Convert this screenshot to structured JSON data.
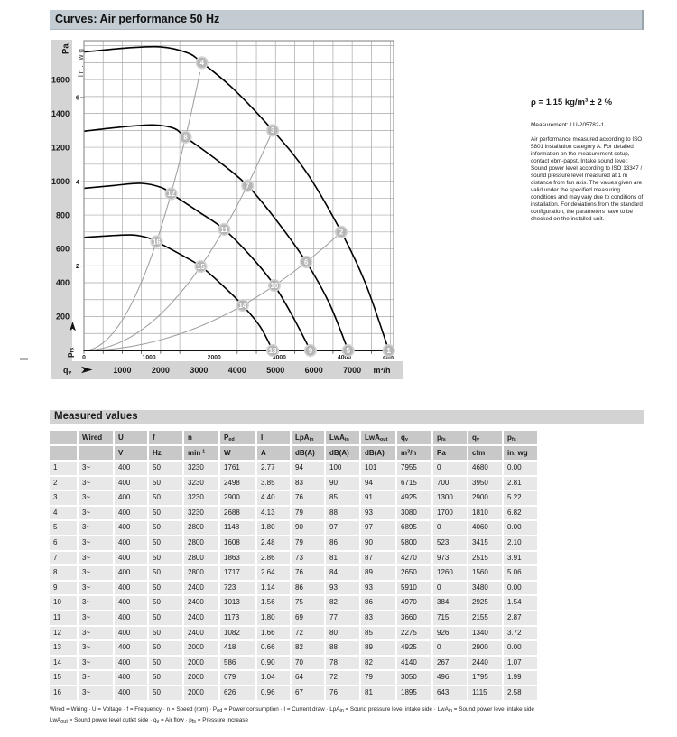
{
  "header_bar": {
    "title": "Curves: Air performance 50 Hz"
  },
  "side_note": {
    "density": "ρ = 1.15 kg/m³ ± 2 %",
    "measurement": "Measurement: LU-205782-1",
    "body": "Air performance measured according to ISO 5801 installation category A. For detailed information on the measurement setup, contact ebm-papst. Intake sound level: Sound power level according to ISO 13347 / sound pressure level measured at 1 m distance from fan axis. The values given are valid under the specified measuring conditions and may vary due to conditions of installation. For deviations from the standard configuration, the parameters have to be checked on the installed unit."
  },
  "chart_data": {
    "type": "line",
    "title": "Air performance 50 Hz",
    "x_axis": {
      "quantity": [
        [
          "t",
          "q"
        ],
        [
          "sub",
          "v"
        ]
      ],
      "unit_primary": "m³/h",
      "unit_secondary": "cfm",
      "range_m3h": [
        0,
        8080
      ],
      "grid_step_m3h": 500,
      "ticks_m3h": [
        1000,
        2000,
        3000,
        4000,
        5000,
        6000,
        7000
      ],
      "ticks_cfm": [
        0,
        1000,
        2000,
        3000,
        4000
      ],
      "m3h_per_cfm": 1.699
    },
    "y_axis": {
      "quantity": [
        [
          "t",
          "p"
        ],
        [
          "sub",
          "fs"
        ]
      ],
      "unit_primary": "Pa",
      "unit_secondary": "in. wg",
      "range_pa": [
        0,
        1830
      ],
      "grid_step_pa": 100,
      "ticks_pa": [
        200,
        400,
        600,
        800,
        1000,
        1200,
        1400,
        1600
      ],
      "ticks_inwg": [
        {
          "label": "2",
          "pa": 498
        },
        {
          "label": "4",
          "pa": 996
        },
        {
          "label": "6",
          "pa": 1494
        }
      ]
    },
    "fan_curves": [
      {
        "rpm": 3230,
        "points": [
          [
            0,
            1763
          ],
          [
            1100,
            1786
          ],
          [
            2000,
            1793
          ],
          [
            2700,
            1758
          ],
          [
            3080,
            1700
          ],
          [
            3900,
            1545
          ],
          [
            4925,
            1300
          ],
          [
            5800,
            1055
          ],
          [
            6715,
            700
          ],
          [
            7350,
            395
          ],
          [
            7955,
            0
          ]
        ]
      },
      {
        "rpm": 2800,
        "points": [
          [
            0,
            1295
          ],
          [
            1000,
            1320
          ],
          [
            1800,
            1332
          ],
          [
            2350,
            1312
          ],
          [
            2650,
            1260
          ],
          [
            3500,
            1120
          ],
          [
            4270,
            973
          ],
          [
            5000,
            775
          ],
          [
            5800,
            523
          ],
          [
            6400,
            280
          ],
          [
            6895,
            0
          ]
        ]
      },
      {
        "rpm": 2400,
        "points": [
          [
            0,
            958
          ],
          [
            800,
            975
          ],
          [
            1500,
            987
          ],
          [
            2030,
            962
          ],
          [
            2275,
            926
          ],
          [
            3000,
            818
          ],
          [
            3660,
            715
          ],
          [
            4400,
            545
          ],
          [
            4970,
            384
          ],
          [
            5450,
            200
          ],
          [
            5910,
            0
          ]
        ]
      },
      {
        "rpm": 2000,
        "points": [
          [
            0,
            668
          ],
          [
            700,
            678
          ],
          [
            1300,
            682
          ],
          [
            1720,
            662
          ],
          [
            1895,
            643
          ],
          [
            2500,
            570
          ],
          [
            3050,
            496
          ],
          [
            3600,
            388
          ],
          [
            4140,
            267
          ],
          [
            4600,
            140
          ],
          [
            4925,
            0
          ]
        ]
      }
    ],
    "system_curves": [
      {
        "apex_q": 3080,
        "apex_p": 1700
      },
      {
        "apex_q": 4925,
        "apex_p": 1300
      },
      {
        "apex_q": 6715,
        "apex_p": 700
      }
    ],
    "operating_points": [
      {
        "n": "1",
        "q_m3h": 7955,
        "p_pa": 0
      },
      {
        "n": "2",
        "q_m3h": 6715,
        "p_pa": 700
      },
      {
        "n": "3",
        "q_m3h": 4925,
        "p_pa": 1300
      },
      {
        "n": "4",
        "q_m3h": 3080,
        "p_pa": 1700
      },
      {
        "n": "5",
        "q_m3h": 6895,
        "p_pa": 0
      },
      {
        "n": "6",
        "q_m3h": 5800,
        "p_pa": 523
      },
      {
        "n": "7",
        "q_m3h": 4270,
        "p_pa": 973
      },
      {
        "n": "8",
        "q_m3h": 2650,
        "p_pa": 1260
      },
      {
        "n": "9",
        "q_m3h": 5910,
        "p_pa": 0
      },
      {
        "n": "10",
        "q_m3h": 4970,
        "p_pa": 384
      },
      {
        "n": "11",
        "q_m3h": 3660,
        "p_pa": 715
      },
      {
        "n": "12",
        "q_m3h": 2275,
        "p_pa": 926
      },
      {
        "n": "13",
        "q_m3h": 4925,
        "p_pa": 0
      },
      {
        "n": "14",
        "q_m3h": 4140,
        "p_pa": 267
      },
      {
        "n": "15",
        "q_m3h": 3050,
        "p_pa": 496
      },
      {
        "n": "16",
        "q_m3h": 1895,
        "p_pa": 643
      }
    ]
  },
  "table": {
    "section_title": "Measured values",
    "columns": [
      {
        "label": [],
        "unit": []
      },
      {
        "label": [
          [
            "t",
            "Wired"
          ]
        ],
        "unit": []
      },
      {
        "label": [
          [
            "t",
            "U"
          ]
        ],
        "unit": [
          [
            "t",
            "V"
          ]
        ]
      },
      {
        "label": [
          [
            "t",
            "f"
          ]
        ],
        "unit": [
          [
            "t",
            "Hz"
          ]
        ]
      },
      {
        "label": [
          [
            "t",
            "n"
          ]
        ],
        "unit": [
          [
            "t",
            "min"
          ],
          [
            "sup",
            "-1"
          ]
        ]
      },
      {
        "label": [
          [
            "t",
            "P"
          ],
          [
            "sub",
            "ed"
          ]
        ],
        "unit": [
          [
            "t",
            "W"
          ]
        ]
      },
      {
        "label": [
          [
            "t",
            "I"
          ]
        ],
        "unit": [
          [
            "t",
            "A"
          ]
        ]
      },
      {
        "label": [
          [
            "t",
            "LpA"
          ],
          [
            "sub",
            "in"
          ]
        ],
        "unit": [
          [
            "t",
            "dB(A)"
          ]
        ]
      },
      {
        "label": [
          [
            "t",
            "LwA"
          ],
          [
            "sub",
            "in"
          ]
        ],
        "unit": [
          [
            "t",
            "dB(A)"
          ]
        ]
      },
      {
        "label": [
          [
            "t",
            "LwA"
          ],
          [
            "sub",
            "out"
          ]
        ],
        "unit": [
          [
            "t",
            "dB(A)"
          ]
        ]
      },
      {
        "label": [
          [
            "t",
            "q"
          ],
          [
            "sub",
            "v"
          ]
        ],
        "unit": [
          [
            "t",
            "m"
          ],
          [
            "sup",
            "3"
          ],
          [
            "t",
            "/h"
          ]
        ]
      },
      {
        "label": [
          [
            "t",
            "p"
          ],
          [
            "sub",
            "fs"
          ]
        ],
        "unit": [
          [
            "t",
            "Pa"
          ]
        ]
      },
      {
        "label": [
          [
            "t",
            "q"
          ],
          [
            "sub",
            "v"
          ]
        ],
        "unit": [
          [
            "t",
            "cfm"
          ]
        ]
      },
      {
        "label": [
          [
            "t",
            "p"
          ],
          [
            "sub",
            "fs"
          ]
        ],
        "unit": [
          [
            "t",
            "in. wg"
          ]
        ]
      }
    ],
    "rows": [
      [
        "1",
        "3~",
        "400",
        "50",
        "3230",
        "1761",
        "2.77",
        "94",
        "100",
        "101",
        "7955",
        "0",
        "4680",
        "0.00"
      ],
      [
        "2",
        "3~",
        "400",
        "50",
        "3230",
        "2498",
        "3.85",
        "83",
        "90",
        "94",
        "6715",
        "700",
        "3950",
        "2.81"
      ],
      [
        "3",
        "3~",
        "400",
        "50",
        "3230",
        "2900",
        "4.40",
        "76",
        "85",
        "91",
        "4925",
        "1300",
        "2900",
        "5.22"
      ],
      [
        "4",
        "3~",
        "400",
        "50",
        "3230",
        "2688",
        "4.13",
        "79",
        "88",
        "93",
        "3080",
        "1700",
        "1810",
        "6.82"
      ],
      [
        "5",
        "3~",
        "400",
        "50",
        "2800",
        "1148",
        "1.80",
        "90",
        "97",
        "97",
        "6895",
        "0",
        "4060",
        "0.00"
      ],
      [
        "6",
        "3~",
        "400",
        "50",
        "2800",
        "1608",
        "2.48",
        "79",
        "86",
        "90",
        "5800",
        "523",
        "3415",
        "2.10"
      ],
      [
        "7",
        "3~",
        "400",
        "50",
        "2800",
        "1863",
        "2.86",
        "73",
        "81",
        "87",
        "4270",
        "973",
        "2515",
        "3.91"
      ],
      [
        "8",
        "3~",
        "400",
        "50",
        "2800",
        "1717",
        "2.64",
        "76",
        "84",
        "89",
        "2650",
        "1260",
        "1560",
        "5.06"
      ],
      [
        "9",
        "3~",
        "400",
        "50",
        "2400",
        "723",
        "1.14",
        "86",
        "93",
        "93",
        "5910",
        "0",
        "3480",
        "0.00"
      ],
      [
        "10",
        "3~",
        "400",
        "50",
        "2400",
        "1013",
        "1.56",
        "75",
        "82",
        "86",
        "4970",
        "384",
        "2925",
        "1.54"
      ],
      [
        "11",
        "3~",
        "400",
        "50",
        "2400",
        "1173",
        "1.80",
        "69",
        "77",
        "83",
        "3660",
        "715",
        "2155",
        "2.87"
      ],
      [
        "12",
        "3~",
        "400",
        "50",
        "2400",
        "1082",
        "1.66",
        "72",
        "80",
        "85",
        "2275",
        "926",
        "1340",
        "3.72"
      ],
      [
        "13",
        "3~",
        "400",
        "50",
        "2000",
        "418",
        "0.66",
        "82",
        "88",
        "89",
        "4925",
        "0",
        "2900",
        "0.00"
      ],
      [
        "14",
        "3~",
        "400",
        "50",
        "2000",
        "586",
        "0.90",
        "70",
        "78",
        "82",
        "4140",
        "267",
        "2440",
        "1.07"
      ],
      [
        "15",
        "3~",
        "400",
        "50",
        "2000",
        "679",
        "1.04",
        "64",
        "72",
        "79",
        "3050",
        "496",
        "1795",
        "1.99"
      ],
      [
        "16",
        "3~",
        "400",
        "50",
        "2000",
        "626",
        "0.96",
        "67",
        "76",
        "81",
        "1895",
        "643",
        "1115",
        "2.58"
      ]
    ]
  },
  "legend_lines": [
    [
      [
        "t",
        "Wired = Wiring · U = Voltage · f = Frequency · n = Speed (rpm) · P"
      ],
      [
        "sub",
        "ed"
      ],
      [
        "t",
        " = Power consumption · I = Current draw · LpA"
      ],
      [
        "sub",
        "in"
      ],
      [
        "t",
        " = Sound pressure level intake side · LwA"
      ],
      [
        "sub",
        "in"
      ],
      [
        "t",
        " = Sound power level intake side"
      ]
    ],
    [
      [
        "t",
        "LwA"
      ],
      [
        "sub",
        "out"
      ],
      [
        "t",
        " = Sound power level outlet side · q"
      ],
      [
        "sub",
        "v"
      ],
      [
        "t",
        " = Air flow · p"
      ],
      [
        "sub",
        "fs"
      ],
      [
        "t",
        " = Pressure increase"
      ]
    ]
  ]
}
